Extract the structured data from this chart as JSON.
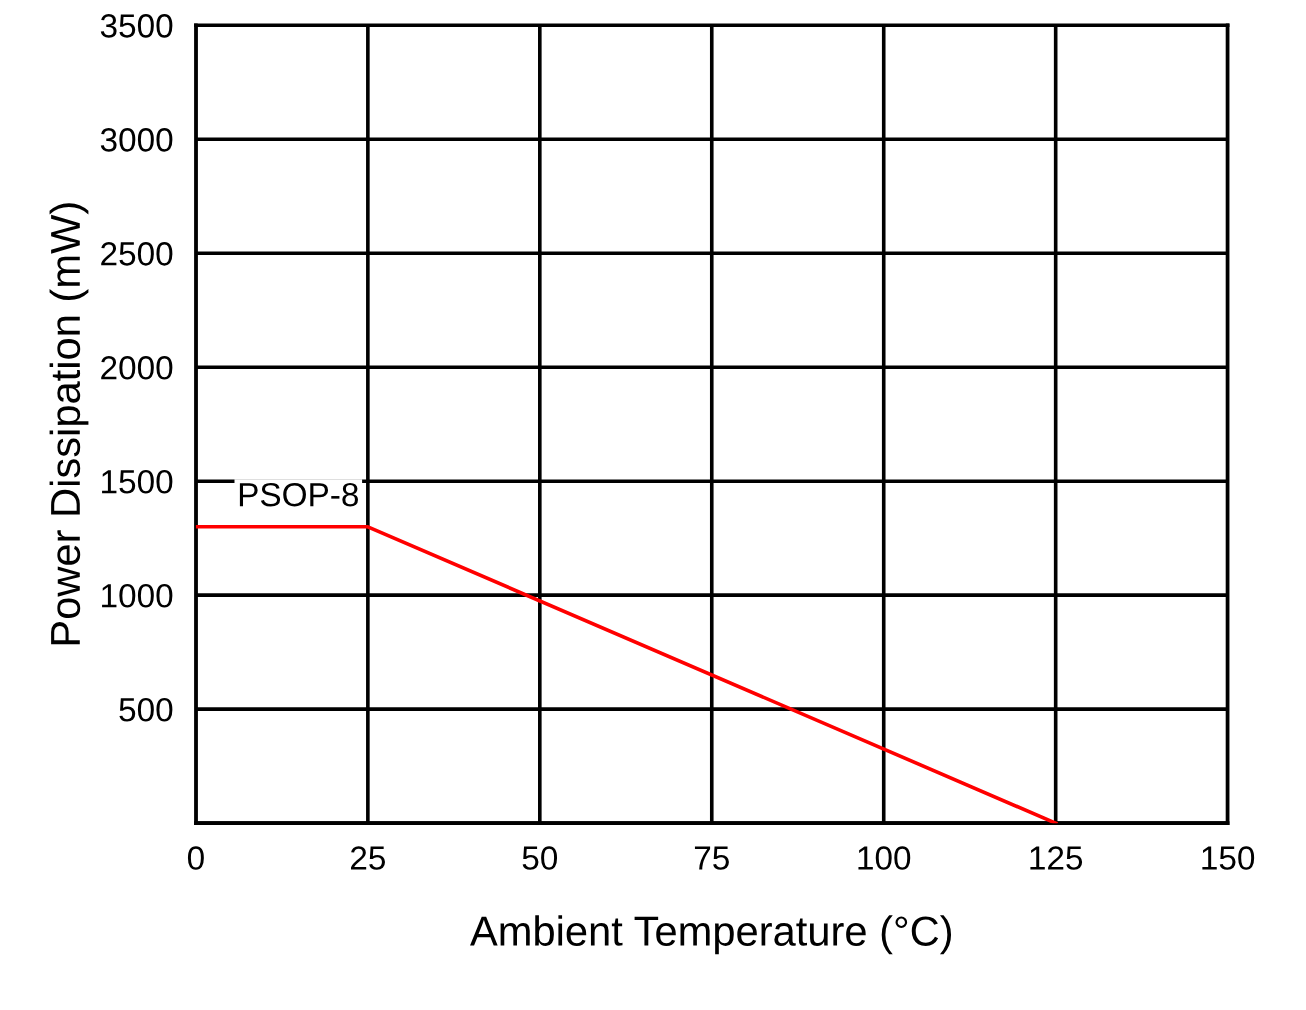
{
  "chart_data": {
    "type": "line",
    "xlabel": "Ambient Temperature (°C)",
    "ylabel": "Power Dissipation (mW)",
    "xlim": [
      0,
      150
    ],
    "xticks": [
      0,
      25,
      50,
      75,
      100,
      125,
      150
    ],
    "ylim": [
      0,
      3500
    ],
    "yticks": [
      {
        "value": 0,
        "label": null
      },
      500,
      1000,
      1500,
      2000,
      2500,
      3000,
      3500
    ],
    "grid": true,
    "legend": false,
    "marker": "none",
    "line_style": "solid",
    "series": [
      {
        "name": "PSOP-8",
        "color": "#ff0000",
        "x": [
          0,
          25,
          125
        ],
        "values": [
          1300,
          1300,
          0
        ]
      }
    ]
  }
}
